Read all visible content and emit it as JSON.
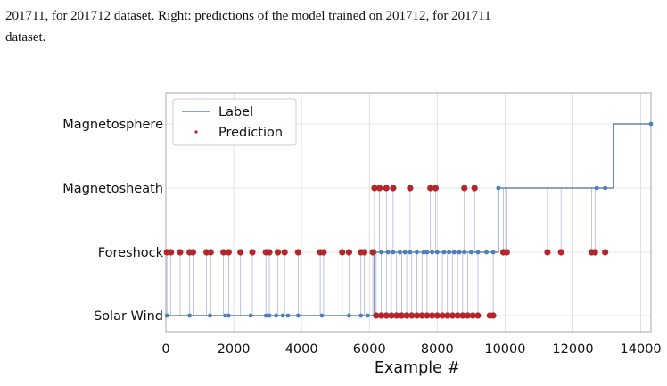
{
  "caption": {
    "line1": "201711, for 201712 dataset. Right: predictions of the model trained on 201712, for 201711",
    "line2": "dataset."
  },
  "colors": {
    "label_line": "#4a6a8f",
    "label_marker": "#4f7fb8",
    "prediction": "#b5262b",
    "vline": "#a9a9d9",
    "grid": "#dcdcdc",
    "axis": "#aaaaaa"
  },
  "chart_data": {
    "type": "scatter",
    "xlabel": "Example #",
    "ylabel": "",
    "xlim": [
      0,
      14300
    ],
    "x_ticks": [
      0,
      2000,
      4000,
      6000,
      8000,
      10000,
      12000,
      14000
    ],
    "categories": [
      "Solar Wind",
      "Foreshock",
      "Magnetosheath",
      "Magnetosphere"
    ],
    "grid": true,
    "legend": {
      "position": "top-left",
      "entries": [
        "Label",
        "Prediction"
      ]
    },
    "series": [
      {
        "name": "Label",
        "kind": "step-line",
        "segments": [
          {
            "x_start": 0,
            "x_end": 6150,
            "class": "Solar Wind"
          },
          {
            "x_start": 6150,
            "x_end": 9800,
            "class": "Foreshock"
          },
          {
            "x_start": 9800,
            "x_end": 13200,
            "class": "Magnetosheath"
          },
          {
            "x_start": 13200,
            "x_end": 14300,
            "class": "Magnetosphere"
          }
        ],
        "points": [
          {
            "x": 30,
            "y": "Solar Wind"
          },
          {
            "x": 700,
            "y": "Solar Wind"
          },
          {
            "x": 1300,
            "y": "Solar Wind"
          },
          {
            "x": 1750,
            "y": "Solar Wind"
          },
          {
            "x": 1850,
            "y": "Solar Wind"
          },
          {
            "x": 2500,
            "y": "Solar Wind"
          },
          {
            "x": 2950,
            "y": "Solar Wind"
          },
          {
            "x": 3050,
            "y": "Solar Wind"
          },
          {
            "x": 3250,
            "y": "Solar Wind"
          },
          {
            "x": 3450,
            "y": "Solar Wind"
          },
          {
            "x": 3600,
            "y": "Solar Wind"
          },
          {
            "x": 3900,
            "y": "Solar Wind"
          },
          {
            "x": 4600,
            "y": "Solar Wind"
          },
          {
            "x": 5400,
            "y": "Solar Wind"
          },
          {
            "x": 5750,
            "y": "Solar Wind"
          },
          {
            "x": 5950,
            "y": "Solar Wind"
          },
          {
            "x": 6150,
            "y": "Foreshock"
          },
          {
            "x": 6350,
            "y": "Foreshock"
          },
          {
            "x": 6550,
            "y": "Foreshock"
          },
          {
            "x": 6700,
            "y": "Foreshock"
          },
          {
            "x": 6900,
            "y": "Foreshock"
          },
          {
            "x": 7050,
            "y": "Foreshock"
          },
          {
            "x": 7200,
            "y": "Foreshock"
          },
          {
            "x": 7400,
            "y": "Foreshock"
          },
          {
            "x": 7600,
            "y": "Foreshock"
          },
          {
            "x": 7700,
            "y": "Foreshock"
          },
          {
            "x": 7850,
            "y": "Foreshock"
          },
          {
            "x": 8000,
            "y": "Foreshock"
          },
          {
            "x": 8200,
            "y": "Foreshock"
          },
          {
            "x": 8350,
            "y": "Foreshock"
          },
          {
            "x": 8500,
            "y": "Foreshock"
          },
          {
            "x": 8650,
            "y": "Foreshock"
          },
          {
            "x": 8800,
            "y": "Foreshock"
          },
          {
            "x": 9000,
            "y": "Foreshock"
          },
          {
            "x": 9200,
            "y": "Foreshock"
          },
          {
            "x": 9450,
            "y": "Foreshock"
          },
          {
            "x": 9650,
            "y": "Foreshock"
          },
          {
            "x": 7800,
            "y": "Magnetosheath"
          },
          {
            "x": 9800,
            "y": "Magnetosheath"
          },
          {
            "x": 12700,
            "y": "Magnetosheath"
          },
          {
            "x": 12950,
            "y": "Magnetosheath"
          },
          {
            "x": 14300,
            "y": "Magnetosphere"
          }
        ]
      },
      {
        "name": "Prediction",
        "kind": "markers",
        "points": [
          {
            "x": 30,
            "y": "Foreshock"
          },
          {
            "x": 150,
            "y": "Foreshock"
          },
          {
            "x": 420,
            "y": "Foreshock"
          },
          {
            "x": 700,
            "y": "Foreshock"
          },
          {
            "x": 800,
            "y": "Foreshock"
          },
          {
            "x": 1200,
            "y": "Foreshock"
          },
          {
            "x": 1320,
            "y": "Foreshock"
          },
          {
            "x": 1700,
            "y": "Foreshock"
          },
          {
            "x": 1850,
            "y": "Foreshock"
          },
          {
            "x": 2200,
            "y": "Foreshock"
          },
          {
            "x": 2550,
            "y": "Foreshock"
          },
          {
            "x": 2950,
            "y": "Foreshock"
          },
          {
            "x": 3050,
            "y": "Foreshock"
          },
          {
            "x": 3300,
            "y": "Foreshock"
          },
          {
            "x": 3500,
            "y": "Foreshock"
          },
          {
            "x": 3900,
            "y": "Foreshock"
          },
          {
            "x": 4550,
            "y": "Foreshock"
          },
          {
            "x": 4650,
            "y": "Foreshock"
          },
          {
            "x": 5200,
            "y": "Foreshock"
          },
          {
            "x": 5400,
            "y": "Foreshock"
          },
          {
            "x": 5750,
            "y": "Foreshock"
          },
          {
            "x": 5850,
            "y": "Foreshock"
          },
          {
            "x": 6100,
            "y": "Foreshock"
          },
          {
            "x": 6150,
            "y": "Magnetosheath"
          },
          {
            "x": 6300,
            "y": "Magnetosheath"
          },
          {
            "x": 6500,
            "y": "Magnetosheath"
          },
          {
            "x": 6700,
            "y": "Magnetosheath"
          },
          {
            "x": 7200,
            "y": "Magnetosheath"
          },
          {
            "x": 7800,
            "y": "Magnetosheath"
          },
          {
            "x": 7950,
            "y": "Magnetosheath"
          },
          {
            "x": 8800,
            "y": "Magnetosheath"
          },
          {
            "x": 9100,
            "y": "Magnetosheath"
          },
          {
            "x": 6200,
            "y": "Solar Wind"
          },
          {
            "x": 6350,
            "y": "Solar Wind"
          },
          {
            "x": 6500,
            "y": "Solar Wind"
          },
          {
            "x": 6650,
            "y": "Solar Wind"
          },
          {
            "x": 6800,
            "y": "Solar Wind"
          },
          {
            "x": 6950,
            "y": "Solar Wind"
          },
          {
            "x": 7100,
            "y": "Solar Wind"
          },
          {
            "x": 7250,
            "y": "Solar Wind"
          },
          {
            "x": 7400,
            "y": "Solar Wind"
          },
          {
            "x": 7550,
            "y": "Solar Wind"
          },
          {
            "x": 7700,
            "y": "Solar Wind"
          },
          {
            "x": 7850,
            "y": "Solar Wind"
          },
          {
            "x": 8000,
            "y": "Solar Wind"
          },
          {
            "x": 8150,
            "y": "Solar Wind"
          },
          {
            "x": 8300,
            "y": "Solar Wind"
          },
          {
            "x": 8450,
            "y": "Solar Wind"
          },
          {
            "x": 8600,
            "y": "Solar Wind"
          },
          {
            "x": 8750,
            "y": "Solar Wind"
          },
          {
            "x": 8900,
            "y": "Solar Wind"
          },
          {
            "x": 9050,
            "y": "Solar Wind"
          },
          {
            "x": 9200,
            "y": "Solar Wind"
          },
          {
            "x": 9550,
            "y": "Solar Wind"
          },
          {
            "x": 9650,
            "y": "Solar Wind"
          },
          {
            "x": 9950,
            "y": "Foreshock"
          },
          {
            "x": 10050,
            "y": "Foreshock"
          },
          {
            "x": 11250,
            "y": "Foreshock"
          },
          {
            "x": 11650,
            "y": "Foreshock"
          },
          {
            "x": 12550,
            "y": "Foreshock"
          },
          {
            "x": 12650,
            "y": "Foreshock"
          },
          {
            "x": 12950,
            "y": "Foreshock"
          }
        ]
      }
    ]
  }
}
